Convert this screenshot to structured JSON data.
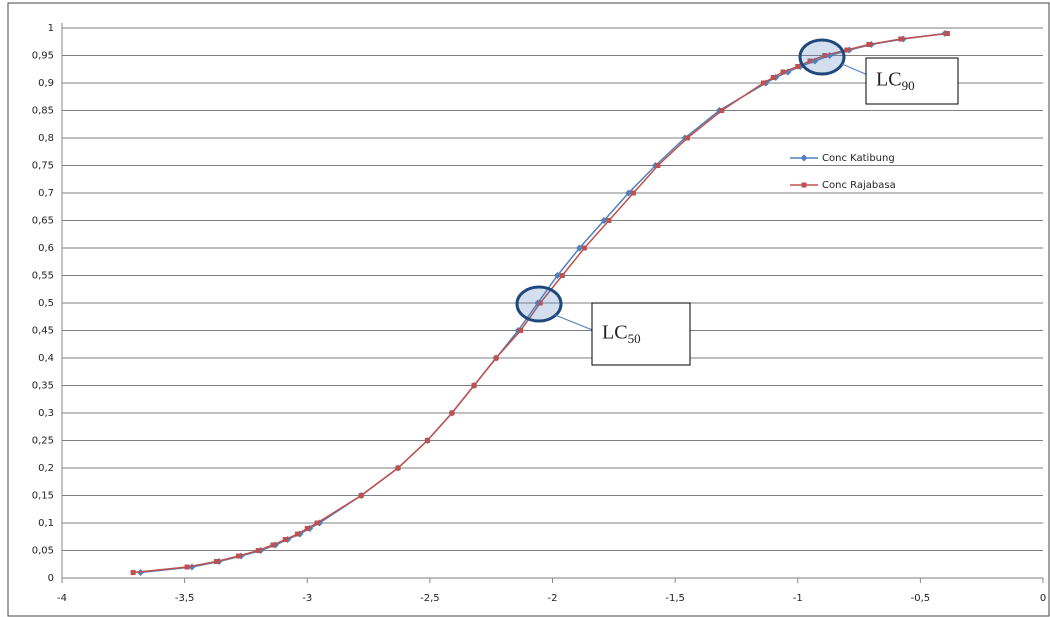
{
  "chart_data": {
    "type": "line",
    "xlim": [
      -4,
      0
    ],
    "xticks": [
      -4,
      {
        "value": -3.5,
        "label": "-3,5"
      },
      -3,
      {
        "value": -2.5,
        "label": "-2,5"
      },
      -2,
      {
        "value": -1.5,
        "label": "-1,5"
      },
      -1,
      {
        "value": -0.5,
        "label": "-0,5"
      },
      0
    ],
    "ylim": [
      0,
      1
    ],
    "yticks": [
      0,
      {
        "value": 0.05,
        "label": "0,05"
      },
      {
        "value": 0.1,
        "label": "0,1"
      },
      {
        "value": 0.15,
        "label": "0,15"
      },
      {
        "value": 0.2,
        "label": "0,2"
      },
      {
        "value": 0.25,
        "label": "0,25"
      },
      {
        "value": 0.3,
        "label": "0,3"
      },
      {
        "value": 0.35,
        "label": "0,35"
      },
      {
        "value": 0.4,
        "label": "0,4"
      },
      {
        "value": 0.45,
        "label": "0,45"
      },
      {
        "value": 0.5,
        "label": "0,5"
      },
      {
        "value": 0.55,
        "label": "0,55"
      },
      {
        "value": 0.6,
        "label": "0,6"
      },
      {
        "value": 0.65,
        "label": "0,65"
      },
      {
        "value": 0.7,
        "label": "0,7"
      },
      {
        "value": 0.75,
        "label": "0,75"
      },
      {
        "value": 0.8,
        "label": "0,8"
      },
      {
        "value": 0.85,
        "label": "0,85"
      },
      {
        "value": 0.9,
        "label": "0,9"
      },
      {
        "value": 0.95,
        "label": "0,95"
      },
      1
    ],
    "grid": true,
    "legend": "right",
    "series": [
      {
        "name": "Conc Katibung",
        "color": "#4f81bd",
        "marker": "diamond",
        "x": [
          -3.68,
          -3.47,
          -3.36,
          -3.27,
          -3.19,
          -3.13,
          -3.08,
          -3.03,
          -2.99,
          -2.95,
          -2.78,
          -2.63,
          -2.51,
          -2.41,
          -2.32,
          -2.23,
          -2.14,
          -2.06,
          -1.98,
          -1.89,
          -1.79,
          -1.69,
          -1.58,
          -1.46,
          -1.32,
          -1.13,
          -1.09,
          -1.04,
          -0.99,
          -0.93,
          -0.87,
          -0.79,
          -0.7,
          -0.57,
          -0.4
        ],
        "values": [
          0.01,
          0.02,
          0.03,
          0.04,
          0.05,
          0.06,
          0.07,
          0.08,
          0.09,
          0.1,
          0.15,
          0.2,
          0.25,
          0.3,
          0.35,
          0.4,
          0.45,
          0.5,
          0.55,
          0.6,
          0.65,
          0.7,
          0.75,
          0.8,
          0.85,
          0.9,
          0.91,
          0.92,
          0.93,
          0.94,
          0.95,
          0.96,
          0.97,
          0.98,
          0.99
        ]
      },
      {
        "name": "Conc Rajabasa",
        "color": "#c0504d",
        "marker": "square",
        "x": [
          -3.71,
          -3.49,
          -3.37,
          -3.28,
          -3.2,
          -3.14,
          -3.09,
          -3.04,
          -3.0,
          -2.96,
          -2.78,
          -2.63,
          -2.51,
          -2.41,
          -2.32,
          -2.23,
          -2.13,
          -2.05,
          -1.96,
          -1.87,
          -1.77,
          -1.67,
          -1.57,
          -1.45,
          -1.31,
          -1.14,
          -1.1,
          -1.06,
          -1.0,
          -0.95,
          -0.89,
          -0.8,
          -0.71,
          -0.58,
          -0.39
        ],
        "values": [
          0.01,
          0.02,
          0.03,
          0.04,
          0.05,
          0.06,
          0.07,
          0.08,
          0.09,
          0.1,
          0.15,
          0.2,
          0.25,
          0.3,
          0.35,
          0.4,
          0.45,
          0.5,
          0.55,
          0.6,
          0.65,
          0.7,
          0.75,
          0.8,
          0.85,
          0.9,
          0.91,
          0.92,
          0.93,
          0.94,
          0.95,
          0.96,
          0.97,
          0.98,
          0.99
        ]
      }
    ],
    "annotations": [
      {
        "text": "LC",
        "sub": "50"
      },
      {
        "text": "LC",
        "sub": "90"
      }
    ]
  }
}
